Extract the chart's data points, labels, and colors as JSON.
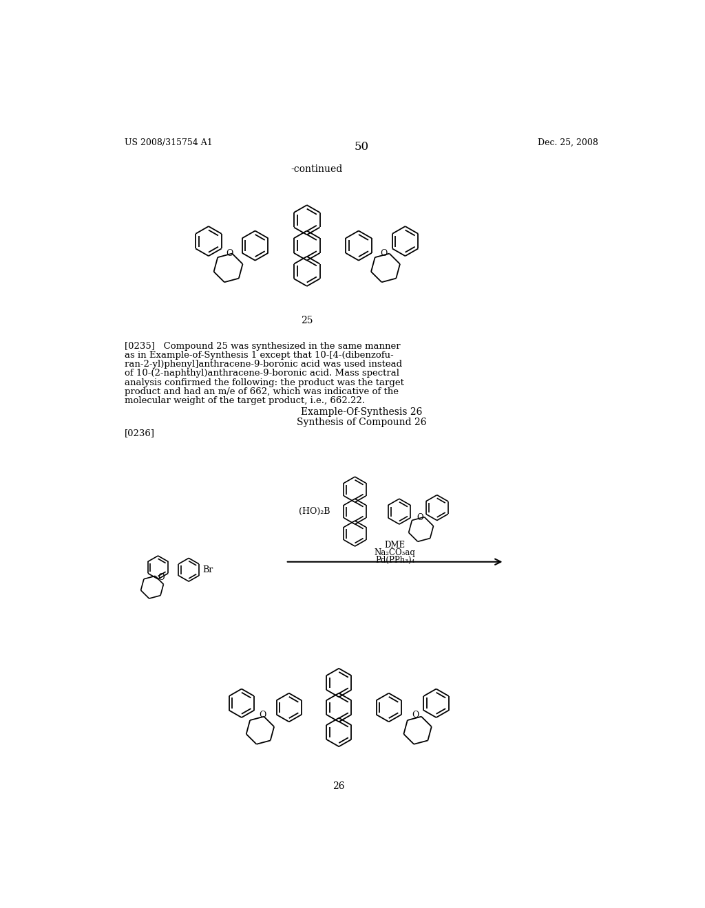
{
  "background_color": "#ffffff",
  "header_left": "US 2008/315754 A1",
  "header_right": "Dec. 25, 2008",
  "page_number": "50",
  "continued_text": "-continued",
  "compound25_label": "25",
  "compound26_label": "26",
  "para0235_lines": [
    "[0235]   Compound 25 was synthesized in the same manner",
    "as in Example-of-Synthesis 1 except that 10-[4-(dibenzofu-",
    "ran-2-yl)phenyl]anthracene-9-boronic acid was used instead",
    "of 10-(2-naphthyl)anthracene-9-boronic acid. Mass spectral",
    "analysis confirmed the following: the product was the target",
    "product and had an m/e of 662, which was indicative of the",
    "molecular weight of the target product, i.e., 662.22."
  ],
  "synthesis26_title1": "Example-Of-Synthesis 26",
  "synthesis26_title2": "Synthesis of Compound 26",
  "para0236": "[0236]",
  "reagent_lines": [
    "Pd(PPh₃)₄",
    "Na₂CO₃aq",
    "DME"
  ],
  "boronic_label": "(HO)₂B",
  "br_label": "Br"
}
